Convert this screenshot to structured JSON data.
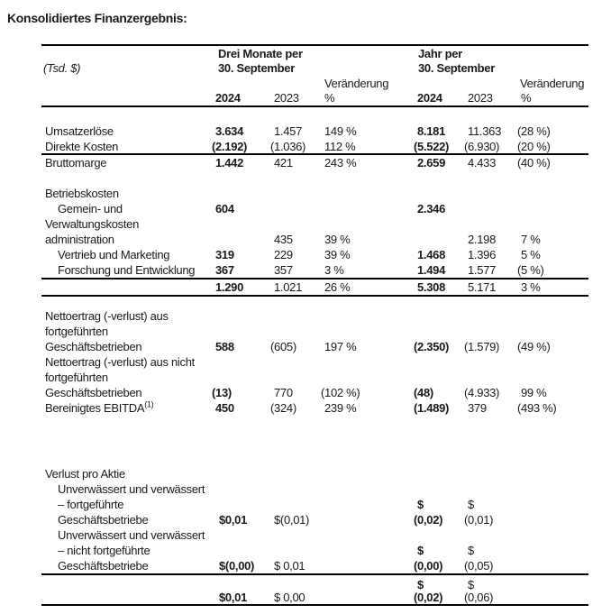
{
  "title": "Konsolidiertes Finanzergebnis:",
  "header": {
    "unit": "(Tsd. $)",
    "period1": [
      "Drei Monate per",
      "30. September"
    ],
    "period2": [
      "Jahr per",
      "30. September"
    ],
    "change": "Veränderung",
    "pct": "%",
    "y2024": "2024",
    "y2023": "2023"
  },
  "rows": [
    {
      "label": "Umsatzerlöse",
      "indent": 0,
      "cells": [
        [
          0,
          "3.634",
          1
        ],
        [
          1,
          "1.457",
          0
        ],
        [
          2,
          "149 %",
          0
        ],
        [
          3,
          "8.181",
          1
        ],
        [
          4,
          "11.363",
          0
        ],
        [
          5,
          "(28 %)",
          0
        ]
      ]
    },
    {
      "label": "Direkte Kosten",
      "indent": 0,
      "cells": [
        [
          0,
          "(2.192)",
          1
        ],
        [
          1,
          "(1.036)",
          0
        ],
        [
          2,
          "112 %",
          0
        ],
        [
          3,
          "(5.522)",
          1
        ],
        [
          4,
          "(6.930)",
          0
        ],
        [
          5,
          "(20 %)",
          0
        ]
      ]
    },
    {
      "label": "Bruttomarge",
      "indent": 0,
      "cells": [
        [
          0,
          "1.442",
          1
        ],
        [
          1,
          "421",
          0
        ],
        [
          2,
          "243 %",
          0
        ],
        [
          3,
          "2.659",
          1
        ],
        [
          4,
          "4.433",
          0
        ],
        [
          5,
          "(40 %)",
          0
        ]
      ]
    },
    {
      "label": "Betriebskosten",
      "indent": 0,
      "cells": []
    },
    {
      "label": "Gemein- und",
      "indent": 1,
      "cells": [
        [
          0,
          "604",
          1
        ],
        [
          3,
          "2.346",
          1
        ]
      ]
    },
    {
      "label": "Verwaltungskosten",
      "indent": 0,
      "cells": []
    },
    {
      "label": "administration",
      "indent": 0,
      "cells": [
        [
          1,
          "435",
          0
        ],
        [
          2,
          "39 %",
          0
        ],
        [
          4,
          "2.198",
          0
        ],
        [
          5,
          "7 %",
          0
        ]
      ]
    },
    {
      "label": "Vertrieb und Marketing",
      "indent": 1,
      "cells": [
        [
          0,
          "319",
          1
        ],
        [
          1,
          "229",
          0
        ],
        [
          2,
          "39 %",
          0
        ],
        [
          3,
          "1.468",
          1
        ],
        [
          4,
          "1.396",
          0
        ],
        [
          5,
          "5 %",
          0
        ]
      ]
    },
    {
      "label": "Forschung und Entwicklung",
      "indent": 1,
      "cells": [
        [
          0,
          "367",
          1
        ],
        [
          1,
          "357",
          0
        ],
        [
          2,
          "3 %",
          0
        ],
        [
          3,
          "1.494",
          1
        ],
        [
          4,
          "1.577",
          0
        ],
        [
          5,
          "(5 %)",
          0
        ]
      ]
    },
    {
      "label": "",
      "indent": 0,
      "cells": [
        [
          0,
          "1.290",
          1
        ],
        [
          1,
          "1.021",
          0
        ],
        [
          2,
          "26 %",
          0
        ],
        [
          3,
          "5.308",
          1
        ],
        [
          4,
          "5.171",
          0
        ],
        [
          5,
          "3 %",
          0
        ]
      ]
    },
    {
      "label": "Nettoertrag (-verlust) aus",
      "indent": 0,
      "cells": []
    },
    {
      "label": "fortgeführten",
      "indent": 0,
      "cells": []
    },
    {
      "label": "Geschäftsbetrieben",
      "indent": 0,
      "cells": [
        [
          0,
          "588",
          1
        ],
        [
          1,
          "(605)",
          0
        ],
        [
          2,
          "197 %",
          0
        ],
        [
          3,
          "(2.350)",
          1
        ],
        [
          4,
          "(1.579)",
          0
        ],
        [
          5,
          "(49 %)",
          0
        ]
      ]
    },
    {
      "label": "Nettoertrag (-verlust) aus nicht",
      "indent": 0,
      "cells": []
    },
    {
      "label": "fortgeführten",
      "indent": 0,
      "cells": []
    },
    {
      "label": "Geschäftsbetrieben",
      "indent": 0,
      "cells": [
        [
          0,
          "(13)",
          1
        ],
        [
          1,
          "770",
          0
        ],
        [
          2,
          "(102 %)",
          0
        ],
        [
          3,
          "(48)",
          1
        ],
        [
          4,
          "(4.933)",
          0
        ],
        [
          5,
          "99 %",
          0
        ]
      ]
    },
    {
      "label": "Bereinigtes EBITDA",
      "sup": "(1)",
      "indent": 0,
      "cells": [
        [
          0,
          "450",
          1
        ],
        [
          1,
          "(324)",
          0
        ],
        [
          2,
          "239 %",
          0
        ],
        [
          3,
          "(1.489)",
          1
        ],
        [
          4,
          "379",
          0
        ],
        [
          5,
          "(493 %)",
          0
        ]
      ]
    },
    {
      "label": "Verlust pro Aktie",
      "indent": 0,
      "cells": []
    },
    {
      "label": "Unverwässert und verwässert",
      "indent": 1,
      "cells": []
    },
    {
      "label": "– fortgeführte",
      "indent": 1,
      "cells": [
        [
          3,
          "$",
          1
        ],
        [
          4,
          "$",
          0
        ]
      ]
    },
    {
      "label": "Geschäftsbetriebe",
      "indent": 1,
      "cells": [
        [
          0,
          "$0,01",
          1
        ],
        [
          1,
          "$(0,01)",
          0
        ],
        [
          3,
          "(0,02)",
          1
        ],
        [
          4,
          "(0,01)",
          0
        ]
      ]
    },
    {
      "label": "Unverwässert und verwässert",
      "indent": 1,
      "cells": []
    },
    {
      "label": "– nicht fortgeführte",
      "indent": 1,
      "cells": [
        [
          3,
          "$",
          1
        ],
        [
          4,
          "$",
          0
        ]
      ]
    },
    {
      "label": "Geschäftsbetriebe",
      "indent": 1,
      "cells": [
        [
          0,
          "$(0,00)",
          1
        ],
        [
          1,
          "$ 0,01",
          0
        ],
        [
          3,
          "(0,00)",
          1
        ],
        [
          4,
          "(0,05)",
          0
        ]
      ]
    },
    {
      "label": "",
      "indent": 0,
      "cells": [
        [
          3,
          "$",
          1
        ],
        [
          4,
          "$",
          0
        ]
      ]
    },
    {
      "label": "",
      "indent": 0,
      "cells": [
        [
          0,
          "$0,01",
          1
        ],
        [
          1,
          "$ 0,00",
          0
        ],
        [
          3,
          "(0,02)",
          1
        ],
        [
          4,
          "(0,06)",
          0
        ]
      ]
    }
  ]
}
